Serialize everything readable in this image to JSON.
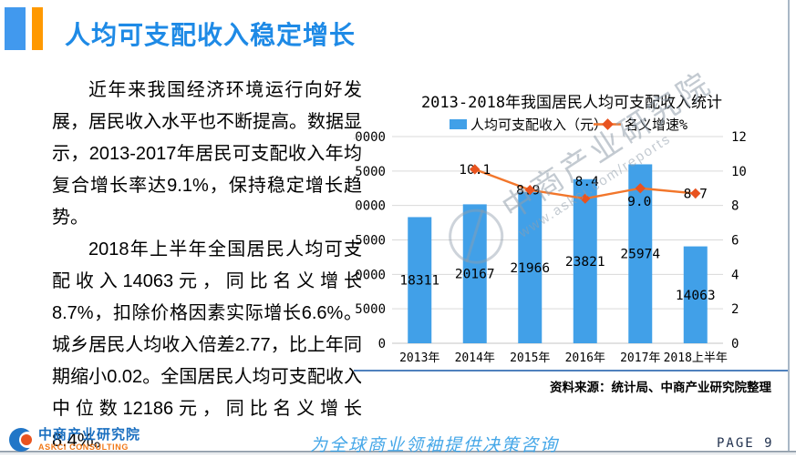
{
  "header": {
    "title": "人均可支配收入稳定增长"
  },
  "left_panel": {
    "paragraphs": [
      "近年来我国经济环境运行向好发展，居民收入水平也不断提高。数据显示，2013-2017年居民可支配收入年均复合增长率达9.1%，保持稳定增长趋势。",
      "2018年上半年全国居民人均可支配收入14063元，同比名义增长8.7%，扣除价格因素实际增长6.6%。城乡居民人均收入倍差2.77，比上年同期缩小0.02。全国居民人均可支配收入中位数12186元，同比名义增长8.4%。"
    ]
  },
  "chart_data": {
    "type": "bar",
    "title": "2013-2018年我国居民人均可支配收入统计",
    "categories": [
      "2013年",
      "2014年",
      "2015年",
      "2016年",
      "2017年",
      "2018上半年"
    ],
    "series": [
      {
        "name": "人均可支配收入（元）",
        "type": "bar",
        "axis": "left",
        "values": [
          18311,
          20167,
          21966,
          23821,
          25974,
          14063
        ],
        "color": "#41a0e8"
      },
      {
        "name": "名义增速%",
        "type": "line",
        "axis": "right",
        "values": [
          null,
          10.1,
          8.9,
          8.4,
          9.0,
          8.7
        ],
        "labels": [
          "",
          "10.1",
          "8.9",
          "8.4",
          "9.0",
          "8.7"
        ],
        "color": "#f2762b",
        "marker_color": "#e8531f"
      }
    ],
    "left_axis": {
      "min": 0,
      "max": 30000,
      "step": 5000
    },
    "right_axis": {
      "min": 0,
      "max": 12,
      "step": 2
    },
    "grid": true,
    "legend_position": "top",
    "source": "资料来源：统计局、中商产业研究院整理",
    "watermark": {
      "line1": "中商产业研究院",
      "line2": "www.askci.com/reports"
    }
  },
  "footer": {
    "logo_title": "中商产业研究院",
    "logo_subtitle": "ASKCI CONSULTING",
    "slogan": "为全球商业领袖提供决策咨询",
    "page_label": "PAGE 9"
  }
}
